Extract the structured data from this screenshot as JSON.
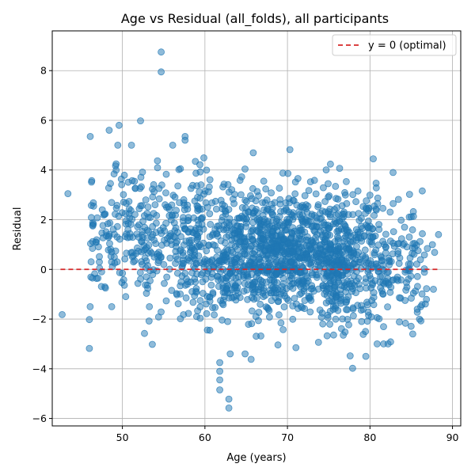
{
  "chart_data": {
    "type": "scatter",
    "title": "Age vs Residual (all_folds), all participants",
    "xlabel": "Age (years)",
    "ylabel": "Residual",
    "xlim": [
      41.5,
      91
    ],
    "ylim": [
      -6.3,
      9.6
    ],
    "xticks": [
      50,
      60,
      70,
      80,
      90
    ],
    "yticks": [
      -6,
      -4,
      -2,
      0,
      2,
      4,
      6,
      8
    ],
    "grid": true,
    "legend_position": "top-right",
    "colors": {
      "points": "#1f77b4",
      "reference_line": "#d62728"
    },
    "reference_line": {
      "y": 0,
      "x_range": [
        42.5,
        88.5
      ],
      "label": "y = 0 (optimal)",
      "style": "dashed"
    },
    "series": [
      {
        "notable_points": [
          {
            "x": 54.7,
            "y": 8.75
          },
          {
            "x": 54.7,
            "y": 7.95
          },
          {
            "x": 52.2,
            "y": 5.98
          },
          {
            "x": 49.6,
            "y": 5.8
          },
          {
            "x": 48.4,
            "y": 5.6
          },
          {
            "x": 46.1,
            "y": 5.35
          },
          {
            "x": 57.6,
            "y": 5.35
          },
          {
            "x": 57.6,
            "y": 5.2
          },
          {
            "x": 56.1,
            "y": 5.0
          },
          {
            "x": 70.3,
            "y": 4.82
          },
          {
            "x": 80.4,
            "y": 4.45
          },
          {
            "x": 82.8,
            "y": 3.9
          },
          {
            "x": 43.4,
            "y": 3.05
          },
          {
            "x": 42.7,
            "y": -1.82
          },
          {
            "x": 46.0,
            "y": -2.02
          },
          {
            "x": 46.0,
            "y": -3.18
          },
          {
            "x": 61.8,
            "y": -3.75
          },
          {
            "x": 61.8,
            "y": -4.1
          },
          {
            "x": 61.8,
            "y": -4.45
          },
          {
            "x": 61.8,
            "y": -4.85
          },
          {
            "x": 62.9,
            "y": -5.22
          },
          {
            "x": 62.9,
            "y": -5.58
          },
          {
            "x": 77.9,
            "y": -3.98
          },
          {
            "x": 79.5,
            "y": -3.5
          },
          {
            "x": 77.6,
            "y": -3.48
          },
          {
            "x": 65.6,
            "y": -3.62
          },
          {
            "x": 60.6,
            "y": -2.45
          },
          {
            "x": 88.3,
            "y": 1.4
          },
          {
            "x": 86.3,
            "y": -1.42
          },
          {
            "x": 86.0,
            "y": -2.0
          }
        ]
      }
    ]
  }
}
